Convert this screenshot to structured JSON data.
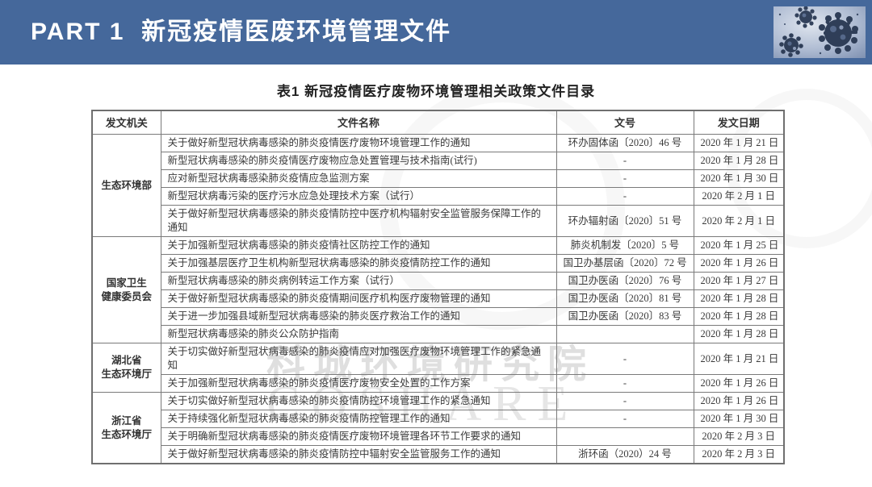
{
  "banner": {
    "title": "PART 1  新冠疫情医废环境管理文件",
    "bar_color": "#45689B",
    "virus_image": "coronavirus-photo"
  },
  "watermark": {
    "line1": "科城环境研究院",
    "line2": "COSHARE"
  },
  "table": {
    "title": "表1 新冠疫情医疗废物环境管理相关政策文件目录",
    "columns": [
      "发文机关",
      "文件名称",
      "文号",
      "发文日期"
    ],
    "groups": [
      {
        "agency": "生态环境部",
        "rows": [
          {
            "name": "关于做好新型冠状病毒感染的肺炎疫情医疗废物环境管理工作的通知",
            "doc_no": "环办固体函〔2020〕46 号",
            "date": "2020 年 1 月 21 日"
          },
          {
            "name": "新型冠状病毒感染的肺炎疫情医疗废物应急处置管理与技术指南(试行)",
            "doc_no": "-",
            "date": "2020 年 1 月 28 日"
          },
          {
            "name": "应对新型冠状病毒感染肺炎疫情应急监测方案",
            "doc_no": "-",
            "date": "2020 年 1 月 30 日"
          },
          {
            "name": "新型冠状病毒污染的医疗污水应急处理技术方案（试行）",
            "doc_no": "-",
            "date": "2020 年 2 月 1 日"
          },
          {
            "name": "关于做好新型冠状病毒感染的肺炎疫情防控中医疗机构辐射安全监管服务保障工作的通知",
            "doc_no": "环办辐射函〔2020〕51 号",
            "date": "2020 年 2 月 1 日"
          }
        ]
      },
      {
        "agency": "国家卫生\n健康委员会",
        "rows": [
          {
            "name": "关于加强新型冠状病毒感染的肺炎疫情社区防控工作的通知",
            "doc_no": "肺炎机制发〔2020〕5 号",
            "date": "2020 年 1 月 25 日"
          },
          {
            "name": "关于加强基层医疗卫生机构新型冠状病毒感染的肺炎疫情防控工作的通知",
            "doc_no": "国卫办基层函〔2020〕72 号",
            "date": "2020 年 1 月 26 日"
          },
          {
            "name": "新型冠状病毒感染的肺炎病例转运工作方案（试行）",
            "doc_no": "国卫办医函〔2020〕76 号",
            "date": "2020 年 1 月 27 日"
          },
          {
            "name": "关于做好新型冠状病毒感染的肺炎疫情期间医疗机构医疗废物管理的通知",
            "doc_no": "国卫办医函〔2020〕81 号",
            "date": "2020 年 1 月 28 日"
          },
          {
            "name": "关于进一步加强县域新型冠状病毒感染的肺炎医疗救治工作的通知",
            "doc_no": "国卫办医函〔2020〕83 号",
            "date": "2020 年 1 月 28 日"
          },
          {
            "name": "新型冠状病毒感染的肺炎公众防护指南",
            "doc_no": "",
            "date": "2020 年 1 月 28 日"
          }
        ]
      },
      {
        "agency": "湖北省\n生态环境厅",
        "rows": [
          {
            "name": "关于切实做好新型冠状病毒感染的肺炎疫情应对加强医疗废物环境管理工作的紧急通知",
            "doc_no": "-",
            "date": "2020 年 1 月 21 日"
          },
          {
            "name": "关于加强新型冠状病毒感染的肺炎疫情医疗废物安全处置的工作方案",
            "doc_no": "-",
            "date": "2020 年 1 月 26 日"
          }
        ]
      },
      {
        "agency": "浙江省\n生态环境厅",
        "rows": [
          {
            "name": "关于切实做好新型冠状病毒感染的肺炎疫情防控环境管理工作的紧急通知",
            "doc_no": "-",
            "date": "2020 年 1 月 26 日"
          },
          {
            "name": "关于持续强化新型冠状病毒感染的肺炎疫情防控管理工作的通知",
            "doc_no": "-",
            "date": "2020 年 1 月 30 日"
          },
          {
            "name": "关于明确新型冠状病毒感染的肺炎疫情医疗废物环境管理各环节工作要求的通知",
            "doc_no": "",
            "date": "2020 年 2 月 3 日"
          },
          {
            "name": "关于做好新型冠状病毒感染的肺炎疫情防控中辐射安全监管服务工作的通知",
            "doc_no": "浙环函（2020）24 号",
            "date": "2020 年 2 月 3 日"
          }
        ]
      }
    ]
  },
  "colors": {
    "banner_blue": "#45689B",
    "table_border": "#7a7a7a",
    "table_text": "#3a3a3a"
  }
}
